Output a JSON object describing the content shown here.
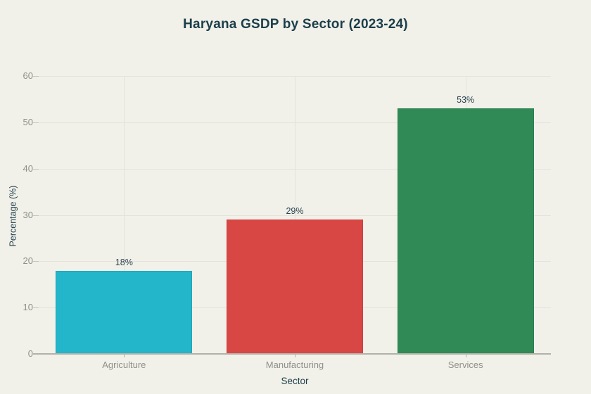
{
  "chart_data": {
    "type": "bar",
    "title": "Haryana GSDP by Sector (2023-24)",
    "xlabel": "Sector",
    "ylabel": "Percentage (%)",
    "categories": [
      "Agriculture",
      "Manufacturing",
      "Services"
    ],
    "values": [
      18,
      29,
      53
    ],
    "value_labels": [
      "18%",
      "29%",
      "53%"
    ],
    "bar_colors": [
      "#23b5c9",
      "#d94745",
      "#2f8a56"
    ],
    "ylim": [
      0,
      60
    ],
    "yticks": [
      0,
      10,
      20,
      30,
      40,
      50,
      60
    ],
    "grid": true,
    "legend_position": "none"
  },
  "colors": {
    "background": "#f1f0e9",
    "title_text": "#1b3e4a",
    "axis_title_text": "#1b3e4a",
    "tick_text": "#90908a",
    "value_label_text": "#2b4450",
    "gridline": "#e4e3db",
    "axis_line": "#b3b2aa",
    "tick_mark": "#c6c5bd"
  }
}
